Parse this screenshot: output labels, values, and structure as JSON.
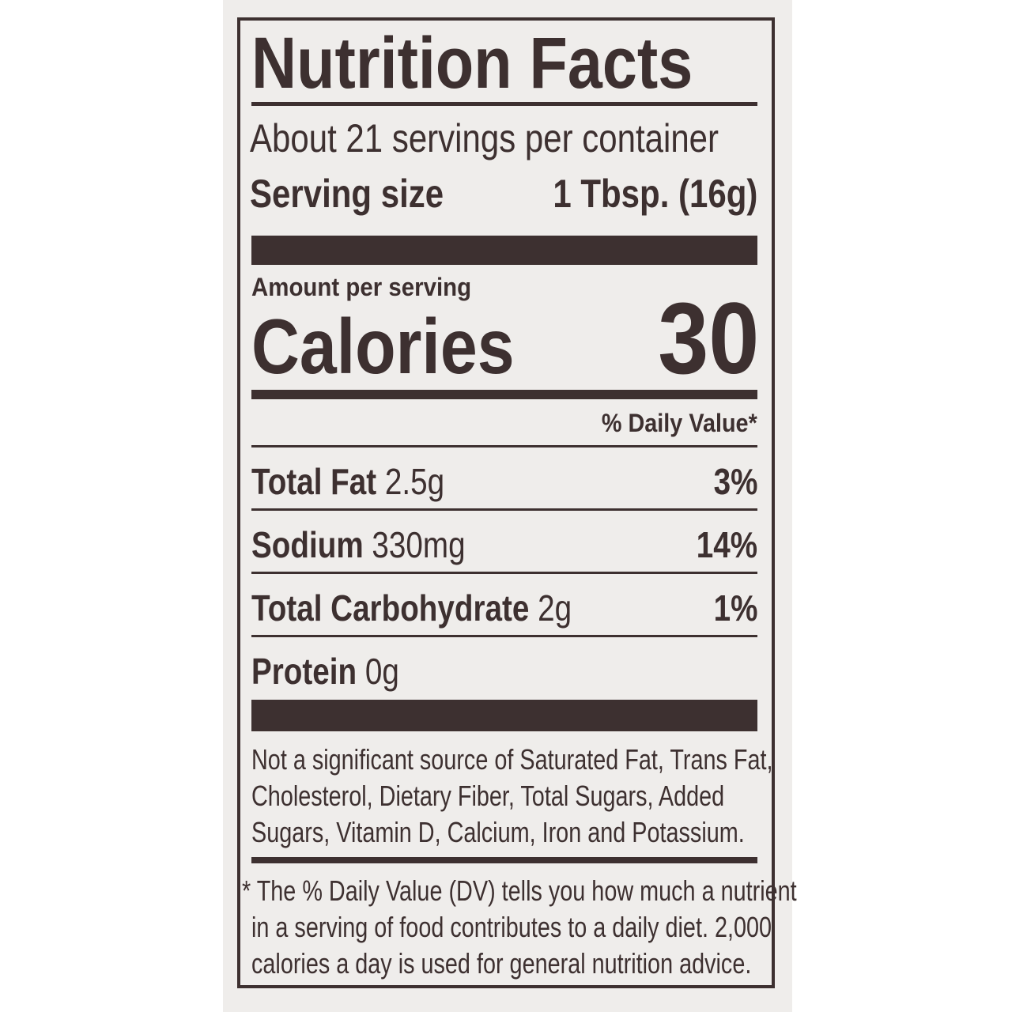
{
  "title": "Nutrition Facts",
  "servings_per_container": "About 21 servings per container",
  "serving_size": {
    "label": "Serving size",
    "value": "1 Tbsp. (16g)"
  },
  "amount_per_serving": "Amount per serving",
  "calories": {
    "label": "Calories",
    "value": "30"
  },
  "daily_value_header": "% Daily Value*",
  "nutrients": [
    {
      "name": "Total Fat",
      "amount": "2.5g",
      "dv": "3%"
    },
    {
      "name": "Sodium",
      "amount": "330mg",
      "dv": "14%"
    },
    {
      "name": "Total Carbohydrate",
      "amount": "2g",
      "dv": "1%"
    },
    {
      "name": "Protein",
      "amount": "0g",
      "dv": ""
    }
  ],
  "not_significant": [
    "Not a significant source of Saturated Fat, Trans Fat,",
    "Cholesterol, Dietary Fiber, Total Sugars, Added",
    "Sugars, Vitamin D, Calcium, Iron and Potassium."
  ],
  "footnote": [
    "* The % Daily Value (DV) tells you how much a nutrient",
    "in a serving of food contributes to a daily diet. 2,000",
    "calories a day is used for general nutrition advice."
  ],
  "colors": {
    "ink": "#3d3030",
    "paper": "#efedeb"
  }
}
